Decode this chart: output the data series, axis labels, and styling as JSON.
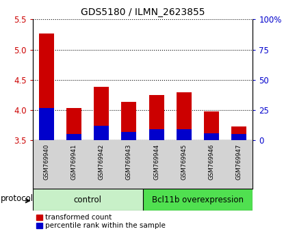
{
  "title": "GDS5180 / ILMN_2623855",
  "samples": [
    "GSM769940",
    "GSM769941",
    "GSM769942",
    "GSM769943",
    "GSM769944",
    "GSM769945",
    "GSM769946",
    "GSM769947"
  ],
  "transformed_counts": [
    5.27,
    4.04,
    4.38,
    4.14,
    4.25,
    4.3,
    3.98,
    3.73
  ],
  "percentile_ranks_pct": [
    27,
    5,
    12,
    7,
    9,
    9,
    6,
    5
  ],
  "bar_bottom": 3.5,
  "ylim": [
    3.5,
    5.5
  ],
  "right_ylim": [
    0,
    100
  ],
  "right_yticks": [
    0,
    25,
    50,
    75,
    100
  ],
  "right_yticklabels": [
    "0",
    "25",
    "50",
    "75",
    "100%"
  ],
  "left_yticks": [
    3.5,
    4.0,
    4.5,
    5.0,
    5.5
  ],
  "control_label": "control",
  "overexpression_label": "Bcl11b overexpression",
  "protocol_label": "protocol",
  "control_color": "#c8f0c8",
  "overexpression_color": "#50e050",
  "red_color": "#cc0000",
  "blue_color": "#0000cc",
  "bar_width": 0.55,
  "left_tick_color": "#cc0000",
  "right_tick_color": "#0000cc",
  "legend_red_label": "transformed count",
  "legend_blue_label": "percentile rank within the sample",
  "sample_bg_color": "#d3d3d3"
}
